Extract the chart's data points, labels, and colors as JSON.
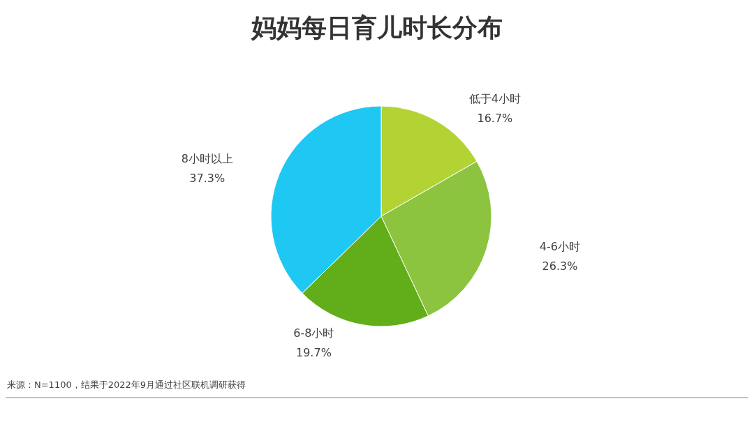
{
  "chart_data": {
    "type": "pie",
    "title": "妈妈每日育儿时长分布",
    "categories": [
      "低于4小时",
      "4-6小时",
      "6-8小时",
      "8小时以上"
    ],
    "values": [
      16.7,
      26.3,
      19.7,
      37.3
    ],
    "colors": [
      "#b3d334",
      "#8cc43f",
      "#62ae1a",
      "#1fc8f2"
    ],
    "value_labels": [
      "16.7%",
      "26.3%",
      "19.7%",
      "37.3%"
    ],
    "annotations": [
      "来源：N=1100，结果于2022年9月通过社区联机调研获得"
    ]
  }
}
